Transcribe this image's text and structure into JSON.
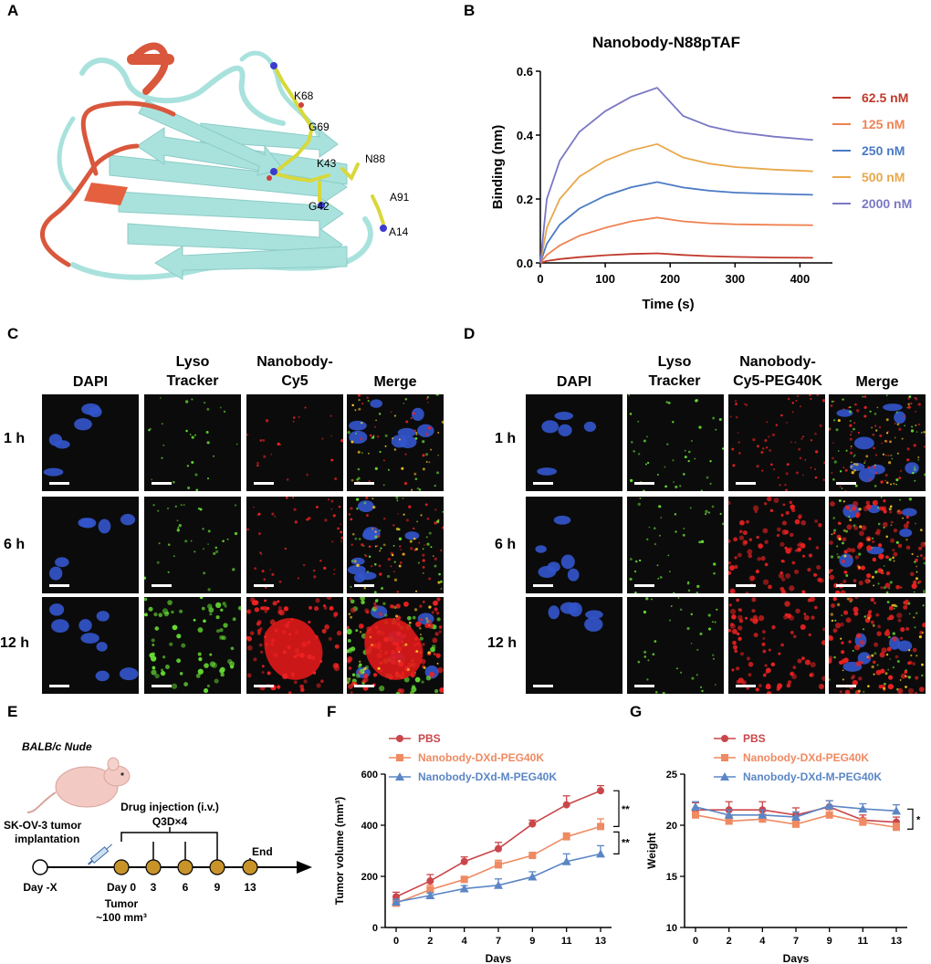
{
  "panel_letters": {
    "A": "A",
    "B": "B",
    "C": "C",
    "D": "D",
    "E": "E",
    "F": "F",
    "G": "G"
  },
  "structure_labels": [
    "K68",
    "G69",
    "K43",
    "N88",
    "G42",
    "A91",
    "A14"
  ],
  "colors": {
    "nanobody_body": "#a9e2dd",
    "cdr_loop": "#d9573c",
    "residue_stick": "#d8d83a"
  },
  "microscopy_c": {
    "columns": [
      "DAPI",
      "Lyso\nTracker",
      "Nanobody-\nCy5",
      "Merge"
    ],
    "rows": [
      "1 h",
      "6 h",
      "12 h"
    ]
  },
  "microscopy_d": {
    "columns": [
      "DAPI",
      "Lyso\nTracker",
      "Nanobody-\nCy5-PEG40K",
      "Merge"
    ],
    "rows": [
      "1 h",
      "6 h",
      "12 h"
    ]
  },
  "schematic": {
    "mouse_label": "BALB/c Nude",
    "implant_label": "SK-OV-3 tumor\nimplantation",
    "injection_label": "Drug injection (i.v.)\nQ3D×4",
    "end_label": "End",
    "day_labels": [
      "Day -X",
      "Day 0",
      "3",
      "6",
      "9",
      "13"
    ],
    "tumor_label": "Tumor\n~100 mm³"
  },
  "chart_data": [
    {
      "id": "B",
      "type": "line",
      "title": "Nanobody-N88pTAF",
      "xlabel": "Time (s)",
      "ylabel": "Binding (nm)",
      "xlim": [
        0,
        450
      ],
      "ylim": [
        0,
        0.6
      ],
      "xticks": [
        0,
        100,
        200,
        300,
        400
      ],
      "yticks": [
        0.0,
        0.2,
        0.4,
        0.6
      ],
      "ytick_labels": [
        "0.0",
        "0.2",
        "0.4",
        "0.6"
      ],
      "legend_placement": "right",
      "series": [
        {
          "name": "62.5 nM",
          "color": "#c0392b",
          "x": [
            0,
            10,
            30,
            60,
            100,
            140,
            180,
            220,
            260,
            300,
            360,
            420
          ],
          "values": [
            0,
            0.006,
            0.012,
            0.018,
            0.024,
            0.028,
            0.03,
            0.025,
            0.021,
            0.019,
            0.017,
            0.016
          ]
        },
        {
          "name": "125 nM",
          "color": "#ef8354",
          "x": [
            0,
            10,
            30,
            60,
            100,
            140,
            180,
            220,
            260,
            300,
            360,
            420
          ],
          "values": [
            0,
            0.025,
            0.055,
            0.085,
            0.11,
            0.13,
            0.142,
            0.13,
            0.124,
            0.121,
            0.119,
            0.118
          ]
        },
        {
          "name": "250 nM",
          "color": "#4a7ac4",
          "x": [
            0,
            10,
            30,
            60,
            100,
            140,
            180,
            220,
            260,
            300,
            360,
            420
          ],
          "values": [
            0,
            0.06,
            0.12,
            0.17,
            0.21,
            0.237,
            0.253,
            0.236,
            0.226,
            0.22,
            0.216,
            0.213
          ]
        },
        {
          "name": "500 nM",
          "color": "#e8a84c",
          "x": [
            0,
            10,
            30,
            60,
            100,
            140,
            180,
            220,
            260,
            300,
            360,
            420
          ],
          "values": [
            0,
            0.11,
            0.2,
            0.27,
            0.32,
            0.352,
            0.372,
            0.33,
            0.311,
            0.3,
            0.292,
            0.287
          ]
        },
        {
          "name": "2000 nM",
          "color": "#7a78c4",
          "x": [
            0,
            10,
            30,
            60,
            100,
            140,
            180,
            220,
            260,
            300,
            360,
            420
          ],
          "values": [
            0,
            0.2,
            0.32,
            0.41,
            0.475,
            0.52,
            0.548,
            0.46,
            0.428,
            0.41,
            0.395,
            0.385
          ]
        }
      ]
    },
    {
      "id": "F",
      "type": "line",
      "xlabel": "Days",
      "ylabel": "Tumor volume (mm³)",
      "categories": [
        "0",
        "2",
        "4",
        "7",
        "9",
        "11",
        "13"
      ],
      "ylim": [
        0,
        600
      ],
      "yticks": [
        0,
        200,
        400,
        600
      ],
      "legend_placement": "top-left",
      "significance": [
        "****",
        "****"
      ],
      "series": [
        {
          "name": "PBS",
          "color": "#c9464a",
          "marker": "circle",
          "values": [
            120,
            182,
            258,
            308,
            405,
            480,
            535
          ],
          "errors": [
            18,
            25,
            18,
            25,
            15,
            35,
            20
          ]
        },
        {
          "name": "Nanobody-DXd-PEG40K",
          "color": "#ef8a62",
          "marker": "square",
          "values": [
            95,
            148,
            188,
            245,
            282,
            355,
            395
          ],
          "errors": [
            12,
            18,
            12,
            18,
            12,
            15,
            30
          ]
        },
        {
          "name": "Nanobody-DXd-M-PEG40K",
          "color": "#5b86c5",
          "marker": "triangle",
          "values": [
            100,
            125,
            152,
            165,
            198,
            258,
            288
          ],
          "errors": [
            10,
            10,
            12,
            25,
            20,
            30,
            32
          ]
        }
      ]
    },
    {
      "id": "G",
      "type": "line",
      "xlabel": "Days",
      "ylabel": "Weight",
      "categories": [
        "0",
        "2",
        "4",
        "7",
        "9",
        "11",
        "13"
      ],
      "ylim": [
        10,
        25
      ],
      "yticks": [
        10,
        15,
        20,
        25
      ],
      "legend_placement": "top-left",
      "significance": [
        "*"
      ],
      "series": [
        {
          "name": "PBS",
          "color": "#c9464a",
          "marker": "circle",
          "values": [
            21.5,
            21.5,
            21.5,
            21.0,
            21.8,
            20.5,
            20.3
          ],
          "errors": [
            0.7,
            0.8,
            0.8,
            0.7,
            0.6,
            0.5,
            0.5
          ]
        },
        {
          "name": "Nanobody-DXd-PEG40K",
          "color": "#ef8a62",
          "marker": "square",
          "values": [
            21.0,
            20.4,
            20.6,
            20.1,
            21.0,
            20.3,
            19.8
          ],
          "errors": [
            0.5,
            0.5,
            0.5,
            0.5,
            0.5,
            0.4,
            0.4
          ]
        },
        {
          "name": "Nanobody-DXd-M-PEG40K",
          "color": "#5b86c5",
          "marker": "triangle",
          "values": [
            21.8,
            21.0,
            21.0,
            20.8,
            21.9,
            21.6,
            21.4
          ],
          "errors": [
            0.5,
            0.5,
            0.5,
            0.5,
            0.5,
            0.5,
            0.6
          ]
        }
      ]
    }
  ]
}
